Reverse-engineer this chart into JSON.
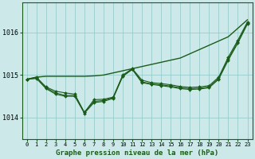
{
  "title": "Graphe pression niveau de la mer (hPa)",
  "background_color": "#cce8e8",
  "grid_color": "#99cccc",
  "line_color": "#1a5c1a",
  "x_labels": [
    "0",
    "1",
    "2",
    "3",
    "4",
    "5",
    "6",
    "7",
    "8",
    "9",
    "10",
    "11",
    "12",
    "13",
    "14",
    "15",
    "16",
    "17",
    "18",
    "19",
    "20",
    "21",
    "22",
    "23"
  ],
  "xlim": [
    -0.5,
    23.5
  ],
  "ylim": [
    1013.5,
    1016.7
  ],
  "yticks": [
    1014,
    1015,
    1016
  ],
  "series_smooth": [
    1014.9,
    1014.95,
    1014.97,
    1014.97,
    1014.97,
    1014.97,
    1014.97,
    1014.98,
    1015.0,
    1015.05,
    1015.1,
    1015.15,
    1015.2,
    1015.25,
    1015.3,
    1015.35,
    1015.4,
    1015.5,
    1015.6,
    1015.7,
    1015.8,
    1015.9,
    1016.1,
    1016.3
  ],
  "series_marked": [
    [
      1014.9,
      1014.95,
      1014.72,
      1014.62,
      1014.58,
      1014.55,
      1014.12,
      1014.42,
      1014.43,
      1014.48,
      1015.0,
      1015.15,
      1014.88,
      1014.82,
      1014.8,
      1014.77,
      1014.73,
      1014.71,
      1014.72,
      1014.75,
      1014.95,
      1015.42,
      1015.82,
      1016.25
    ],
    [
      1014.9,
      1014.93,
      1014.7,
      1014.58,
      1014.52,
      1014.52,
      1014.12,
      1014.38,
      1014.4,
      1014.47,
      1014.98,
      1015.14,
      1014.84,
      1014.79,
      1014.77,
      1014.74,
      1014.7,
      1014.68,
      1014.69,
      1014.72,
      1014.92,
      1015.38,
      1015.78,
      1016.22
    ],
    [
      1014.9,
      1014.92,
      1014.68,
      1014.55,
      1014.5,
      1014.5,
      1014.1,
      1014.35,
      1014.38,
      1014.45,
      1014.97,
      1015.13,
      1014.82,
      1014.78,
      1014.75,
      1014.72,
      1014.68,
      1014.66,
      1014.67,
      1014.7,
      1014.9,
      1015.35,
      1015.75,
      1016.2
    ]
  ]
}
